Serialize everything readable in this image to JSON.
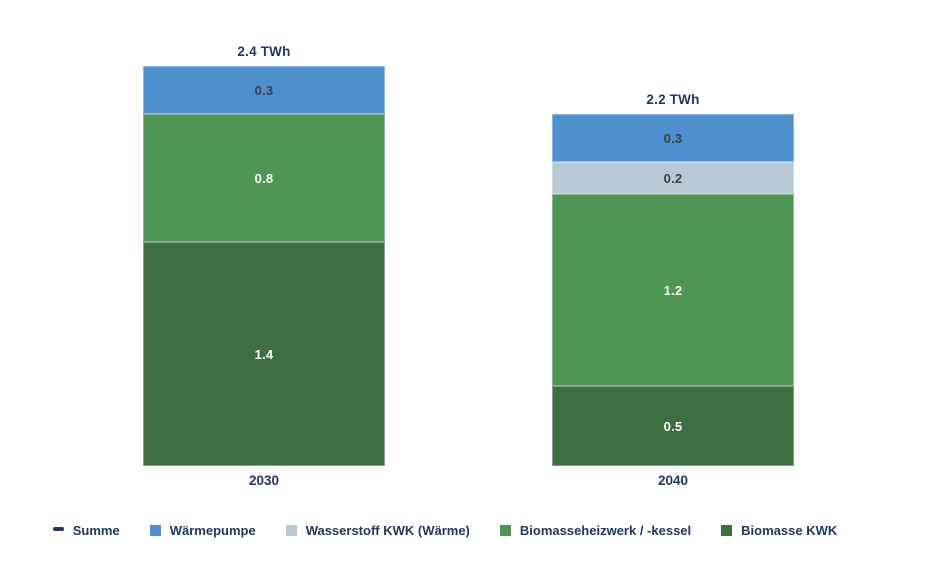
{
  "chart_data": {
    "type": "bar",
    "stacked": true,
    "unit": "TWh",
    "categories": [
      "2030",
      "2040"
    ],
    "totals": [
      "2.4 TWh",
      "2.2 TWh"
    ],
    "series": [
      {
        "name": "Wärmepumpe",
        "color": "#4E8FCF",
        "label_color": "#404040",
        "values": [
          0.3,
          0.3
        ]
      },
      {
        "name": "Wasserstoff KWK (Wärme)",
        "color": "#B6C9D5",
        "label_color": "#404040",
        "values": [
          0,
          0.2
        ]
      },
      {
        "name": "Biomasseheizwerk / -kessel",
        "color": "#4F9654",
        "label_color": "#FFFFFF",
        "values": [
          0.8,
          1.2
        ]
      },
      {
        "name": "Biomasse KWK",
        "color": "#3D6F40",
        "label_color": "#FFFFFF",
        "values": [
          1.4,
          0.5
        ]
      }
    ],
    "legend": [
      {
        "label": "Summe",
        "marker": "dash",
        "color": "#1F3864"
      },
      {
        "label": "Wärmepumpe",
        "marker": "square",
        "color": "#4E8FCF"
      },
      {
        "label": "Wasserstoff KWK (Wärme)",
        "marker": "square",
        "color": "#B6C9D5"
      },
      {
        "label": "Biomasseheizwerk / -kessel",
        "marker": "square",
        "color": "#4F9654"
      },
      {
        "label": "Biomasse KWK",
        "marker": "square",
        "color": "#3D6F40"
      }
    ],
    "legend_position": "bottom",
    "ylim": [
      0,
      2.5
    ],
    "grid": false,
    "text_color": "#1F3864"
  }
}
